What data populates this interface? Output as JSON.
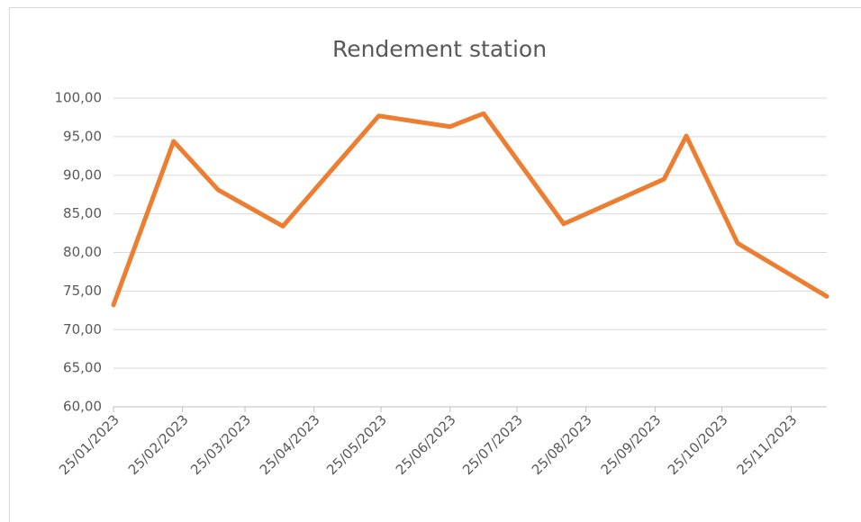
{
  "chart_data": {
    "type": "line",
    "title": "Rendement station",
    "x": [
      "2023-01-25",
      "2023-02-21",
      "2023-03-13",
      "2023-04-11",
      "2023-05-24",
      "2023-06-25",
      "2023-07-10",
      "2023-08-15",
      "2023-09-29",
      "2023-10-09",
      "2023-11-01",
      "2023-12-11"
    ],
    "values": [
      73.2,
      94.4,
      88.1,
      83.4,
      97.7,
      96.3,
      98.0,
      83.7,
      89.5,
      95.1,
      81.2,
      74.3
    ],
    "color": "#ed7d31",
    "xlim": [
      "2023-01-25",
      "2023-12-11"
    ],
    "xticks": [
      {
        "value": "2023-01-25",
        "label": "25/01/2023"
      },
      {
        "value": "2023-02-25",
        "label": "25/02/2023"
      },
      {
        "value": "2023-03-25",
        "label": "25/03/2023"
      },
      {
        "value": "2023-04-25",
        "label": "25/04/2023"
      },
      {
        "value": "2023-05-25",
        "label": "25/05/2023"
      },
      {
        "value": "2023-06-25",
        "label": "25/06/2023"
      },
      {
        "value": "2023-07-25",
        "label": "25/07/2023"
      },
      {
        "value": "2023-08-25",
        "label": "25/08/2023"
      },
      {
        "value": "2023-09-25",
        "label": "25/09/2023"
      },
      {
        "value": "2023-10-25",
        "label": "25/10/2023"
      },
      {
        "value": "2023-11-25",
        "label": "25/11/2023"
      }
    ],
    "ylim": [
      60,
      100
    ],
    "yticks": [
      {
        "value": 60,
        "label": "60,00"
      },
      {
        "value": 65,
        "label": "65,00"
      },
      {
        "value": 70,
        "label": "70,00"
      },
      {
        "value": 75,
        "label": "75,00"
      },
      {
        "value": 80,
        "label": "80,00"
      },
      {
        "value": 85,
        "label": "85,00"
      },
      {
        "value": 90,
        "label": "90,00"
      },
      {
        "value": 95,
        "label": "95,00"
      },
      {
        "value": 100,
        "label": "100,00"
      }
    ],
    "grid": true
  }
}
